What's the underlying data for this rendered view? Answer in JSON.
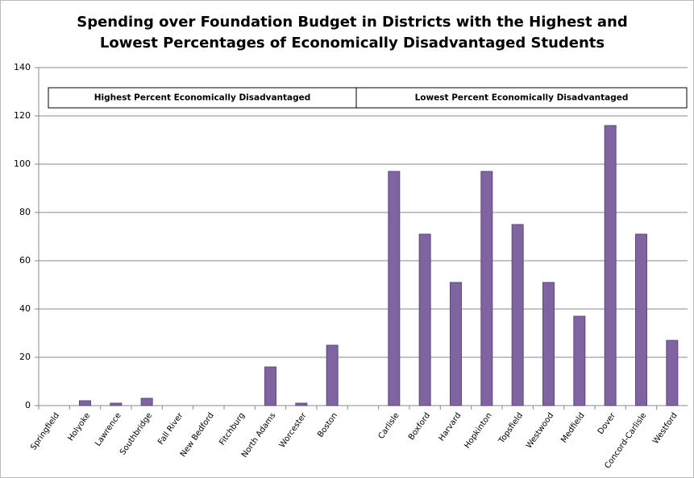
{
  "chart_data": {
    "type": "bar",
    "title": [
      "Spending over Foundation Budget in Districts with the Highest and",
      "Lowest Percentages of Economically Disadvantaged Students"
    ],
    "annotations": [
      "Highest Percent Economically Disadvantaged",
      "Lowest Percent Economically Disadvantaged"
    ],
    "categories": [
      "Springfield",
      "Holyoke",
      "Lawrence",
      "Southbridge",
      "Fall River",
      "New Bedford",
      "Fitchburg",
      "North Adams",
      "Worcester",
      "Boston",
      null,
      "Carlisle",
      "Boxford",
      "Harvard",
      "Hopkinton",
      "Topsfield",
      "Westwood",
      "Medfield",
      "Dover",
      "Concord-Carlisle",
      "Westford"
    ],
    "values": [
      0,
      2,
      1,
      3,
      0,
      0,
      0,
      16,
      1,
      25,
      null,
      97,
      71,
      51,
      97,
      75,
      51,
      37,
      116,
      71,
      27
    ],
    "color": "#8064a2",
    "ylim": [
      0,
      140
    ],
    "yticks": [
      0,
      20,
      40,
      60,
      80,
      100,
      120,
      140
    ],
    "grid": true
  }
}
